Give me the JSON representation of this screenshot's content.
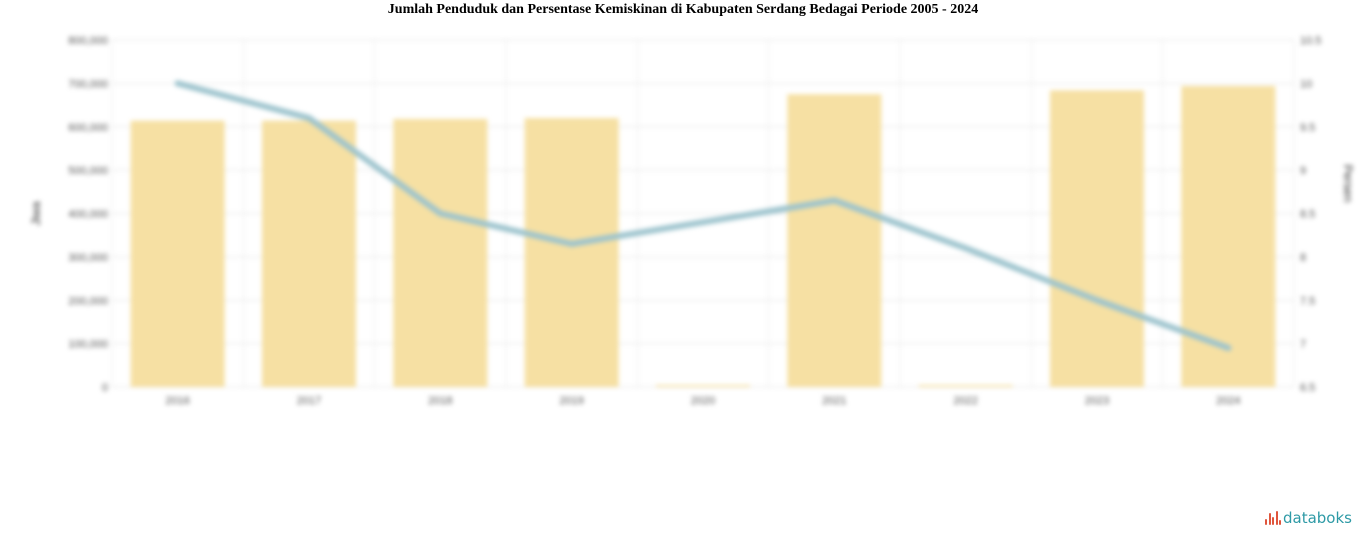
{
  "title": "Jumlah Penduduk dan Persentase Kemiskinan di Kabupaten Serdang Bedagai Periode 2005 - 2024",
  "brand": {
    "name": "databoks",
    "icon": "databoks-logo-icon"
  },
  "chart_data": {
    "type": "bar",
    "categories": [
      "2016",
      "2017",
      "2018",
      "2019",
      "2020",
      "2021",
      "2022",
      "2023",
      "2024"
    ],
    "series": [
      {
        "type": "bar",
        "axis": "left",
        "color": "#f6e0a3",
        "values": [
          614000,
          614000,
          618000,
          620000,
          0,
          675000,
          0,
          684000,
          694000
        ]
      },
      {
        "type": "line",
        "axis": "right",
        "color": "#9cc3cd",
        "values": [
          10.0,
          9.6,
          8.5,
          8.15,
          8.4,
          8.65,
          8.1,
          7.5,
          6.95
        ]
      }
    ],
    "y_left": {
      "label": "Jiwa",
      "ylim": [
        0,
        800000
      ],
      "ticks": [
        "0",
        "100,000",
        "200,000",
        "300,000",
        "400,000",
        "500,000",
        "600,000",
        "700,000",
        "800,000"
      ]
    },
    "y_right": {
      "label": "Persen",
      "ylim": [
        6.5,
        10.5
      ],
      "ticks": [
        "6.5",
        "7",
        "7.5",
        "8",
        "8.5",
        "9",
        "9.5",
        "10",
        "10.5"
      ]
    },
    "grid": true
  }
}
